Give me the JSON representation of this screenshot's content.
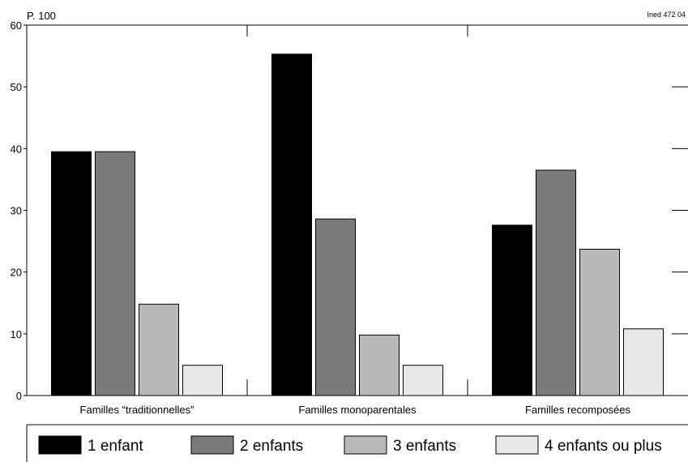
{
  "chart_data": {
    "type": "bar",
    "unit_label": "P. 100",
    "source_label": "Ined 472 04",
    "categories": [
      "Familles “traditionnelles”",
      "Familles monoparentales",
      "Familles recomposées"
    ],
    "series": [
      {
        "name": "1 enfant",
        "values": [
          39.5,
          55.3,
          27.6
        ],
        "color": "#000000"
      },
      {
        "name": "2 enfants",
        "values": [
          39.5,
          28.6,
          36.5
        ],
        "color": "#7a7a7a"
      },
      {
        "name": "3 enfants",
        "values": [
          14.8,
          9.8,
          23.7
        ],
        "color": "#b9b9b9"
      },
      {
        "name": "4 enfants ou plus",
        "values": [
          4.9,
          4.9,
          10.8
        ],
        "color": "#e8e8e8"
      }
    ],
    "ylim": [
      0,
      60
    ],
    "yticks": [
      0,
      10,
      20,
      30,
      40,
      50,
      60
    ],
    "grid": false,
    "legend_position": "bottom"
  }
}
